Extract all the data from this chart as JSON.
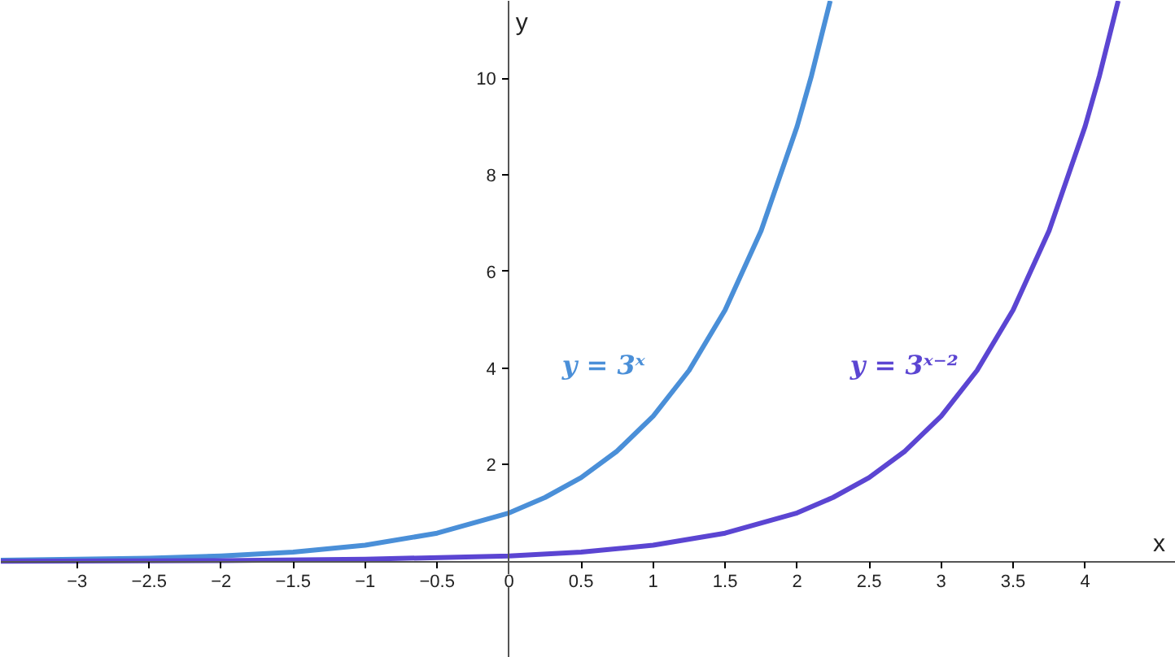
{
  "chart_data": {
    "type": "line",
    "xlabel": "x",
    "ylabel": "y",
    "xlim": [
      -3.53,
      4.63
    ],
    "ylim": [
      -2.0,
      11.6
    ],
    "xticks": [
      {
        "value": -3,
        "label": "−3"
      },
      {
        "value": -2.5,
        "label": "−2.5"
      },
      {
        "value": -2,
        "label": "−2"
      },
      {
        "value": -1.5,
        "label": "−1.5"
      },
      {
        "value": -1,
        "label": "−1"
      },
      {
        "value": -0.5,
        "label": "−0.5"
      },
      0,
      0.5,
      1,
      1.5,
      2,
      2.5,
      3,
      3.5,
      4
    ],
    "yticks": [
      2,
      4,
      6,
      8,
      10
    ],
    "grid": false,
    "marker": "none",
    "line_style": "solid",
    "series": [
      {
        "name": "y = 3ˣ",
        "color": "#4a8fd8",
        "x": [
          -3.53,
          -3,
          -2.5,
          -2,
          -1.5,
          -1,
          -0.5,
          0,
          0.25,
          0.5,
          0.75,
          1,
          1.25,
          1.5,
          1.75,
          2,
          2.1,
          2.23
        ],
        "values": [
          0.02,
          0.04,
          0.06,
          0.11,
          0.19,
          0.33,
          0.58,
          1,
          1.32,
          1.73,
          2.28,
          3,
          3.95,
          5.2,
          6.84,
          9,
          10.05,
          11.6
        ]
      },
      {
        "name": "y = 3ˣ⁻²",
        "color": "#5b45d2",
        "x": [
          -3.53,
          -2,
          -1,
          0,
          0.5,
          1,
          1.5,
          2,
          2.25,
          2.5,
          2.75,
          3,
          3.25,
          3.5,
          3.75,
          4,
          4.1,
          4.23
        ],
        "values": [
          0.0,
          0.01,
          0.04,
          0.11,
          0.19,
          0.33,
          0.58,
          1,
          1.32,
          1.73,
          2.28,
          3,
          3.95,
          5.2,
          6.84,
          9,
          10.05,
          11.6
        ]
      }
    ]
  }
}
